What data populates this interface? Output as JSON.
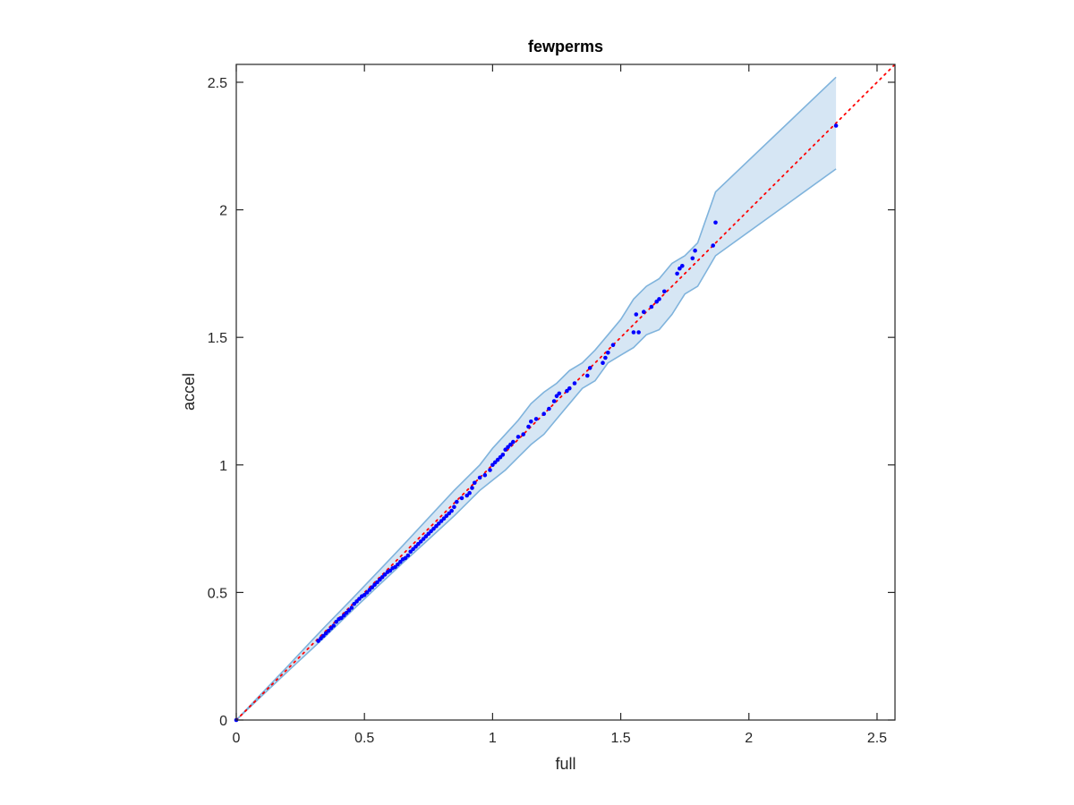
{
  "chart_data": {
    "type": "scatter",
    "title": "fewperms",
    "xlabel": "full",
    "ylabel": "accel",
    "xlim": [
      0,
      2.57
    ],
    "ylim": [
      0,
      2.57
    ],
    "xticks": [
      0,
      0.5,
      1,
      1.5,
      2,
      2.5
    ],
    "yticks": [
      0,
      0.5,
      1,
      1.5,
      2,
      2.5
    ],
    "xtick_labels": [
      "0",
      "0.5",
      "1",
      "1.5",
      "2",
      "2.5"
    ],
    "ytick_labels": [
      "0",
      "0.5",
      "1",
      "1.5",
      "2",
      "2.5"
    ],
    "grid": false,
    "colors": {
      "points": "#0000ff",
      "reference_line": "#ff0000",
      "band_fill": "#d6e6f4",
      "band_edge": "#7fb3dc",
      "axes": "#262626"
    },
    "reference_line": {
      "x": [
        0,
        2.57
      ],
      "y": [
        0,
        2.57
      ],
      "style": "dotted"
    },
    "band": {
      "x": [
        0,
        0.1,
        0.2,
        0.3,
        0.35,
        0.45,
        0.55,
        0.65,
        0.75,
        0.85,
        0.95,
        1.0,
        1.05,
        1.1,
        1.15,
        1.2,
        1.25,
        1.3,
        1.35,
        1.4,
        1.45,
        1.5,
        1.55,
        1.6,
        1.65,
        1.7,
        1.75,
        1.8,
        1.87,
        2.34
      ],
      "upper": [
        0,
        0.105,
        0.21,
        0.317,
        0.37,
        0.473,
        0.578,
        0.684,
        0.792,
        0.9,
        1.0,
        1.065,
        1.12,
        1.175,
        1.24,
        1.285,
        1.32,
        1.37,
        1.4,
        1.45,
        1.51,
        1.57,
        1.65,
        1.7,
        1.73,
        1.79,
        1.82,
        1.87,
        2.07,
        2.52
      ],
      "lower": [
        0,
        0.095,
        0.19,
        0.283,
        0.33,
        0.427,
        0.522,
        0.616,
        0.708,
        0.8,
        0.9,
        0.94,
        0.98,
        1.03,
        1.08,
        1.12,
        1.18,
        1.24,
        1.3,
        1.33,
        1.4,
        1.43,
        1.46,
        1.51,
        1.53,
        1.59,
        1.67,
        1.7,
        1.82,
        2.16
      ]
    },
    "points": {
      "x": [
        0,
        0.32,
        0.33,
        0.34,
        0.35,
        0.36,
        0.37,
        0.38,
        0.39,
        0.4,
        0.41,
        0.42,
        0.43,
        0.44,
        0.45,
        0.46,
        0.47,
        0.48,
        0.49,
        0.5,
        0.51,
        0.52,
        0.53,
        0.54,
        0.55,
        0.56,
        0.57,
        0.58,
        0.59,
        0.6,
        0.61,
        0.62,
        0.63,
        0.64,
        0.65,
        0.66,
        0.67,
        0.68,
        0.69,
        0.7,
        0.71,
        0.72,
        0.73,
        0.74,
        0.75,
        0.76,
        0.77,
        0.78,
        0.79,
        0.8,
        0.81,
        0.82,
        0.83,
        0.84,
        0.85,
        0.86,
        0.88,
        0.9,
        0.91,
        0.92,
        0.93,
        0.95,
        0.97,
        0.99,
        1.0,
        1.01,
        1.02,
        1.03,
        1.04,
        1.05,
        1.06,
        1.07,
        1.08,
        1.1,
        1.12,
        1.14,
        1.15,
        1.17,
        1.2,
        1.22,
        1.24,
        1.25,
        1.26,
        1.29,
        1.3,
        1.32,
        1.37,
        1.38,
        1.43,
        1.44,
        1.45,
        1.47,
        1.55,
        1.56,
        1.57,
        1.59,
        1.62,
        1.64,
        1.65,
        1.67,
        1.72,
        1.73,
        1.74,
        1.78,
        1.79,
        1.86,
        1.87,
        2.34
      ],
      "y": [
        0,
        0.31,
        0.32,
        0.33,
        0.34,
        0.35,
        0.36,
        0.37,
        0.385,
        0.395,
        0.4,
        0.41,
        0.42,
        0.43,
        0.44,
        0.455,
        0.465,
        0.475,
        0.485,
        0.49,
        0.5,
        0.51,
        0.52,
        0.53,
        0.54,
        0.55,
        0.56,
        0.57,
        0.58,
        0.585,
        0.595,
        0.6,
        0.61,
        0.62,
        0.63,
        0.635,
        0.645,
        0.66,
        0.67,
        0.68,
        0.69,
        0.7,
        0.71,
        0.72,
        0.73,
        0.74,
        0.75,
        0.76,
        0.77,
        0.78,
        0.79,
        0.8,
        0.81,
        0.82,
        0.835,
        0.855,
        0.87,
        0.88,
        0.89,
        0.91,
        0.93,
        0.95,
        0.96,
        0.98,
        1.0,
        1.01,
        1.02,
        1.03,
        1.04,
        1.06,
        1.07,
        1.08,
        1.09,
        1.11,
        1.12,
        1.15,
        1.17,
        1.18,
        1.2,
        1.22,
        1.25,
        1.27,
        1.28,
        1.29,
        1.3,
        1.32,
        1.35,
        1.38,
        1.4,
        1.42,
        1.44,
        1.47,
        1.52,
        1.59,
        1.52,
        1.6,
        1.62,
        1.64,
        1.65,
        1.68,
        1.75,
        1.77,
        1.78,
        1.81,
        1.84,
        1.86,
        1.95,
        2.33
      ]
    }
  }
}
